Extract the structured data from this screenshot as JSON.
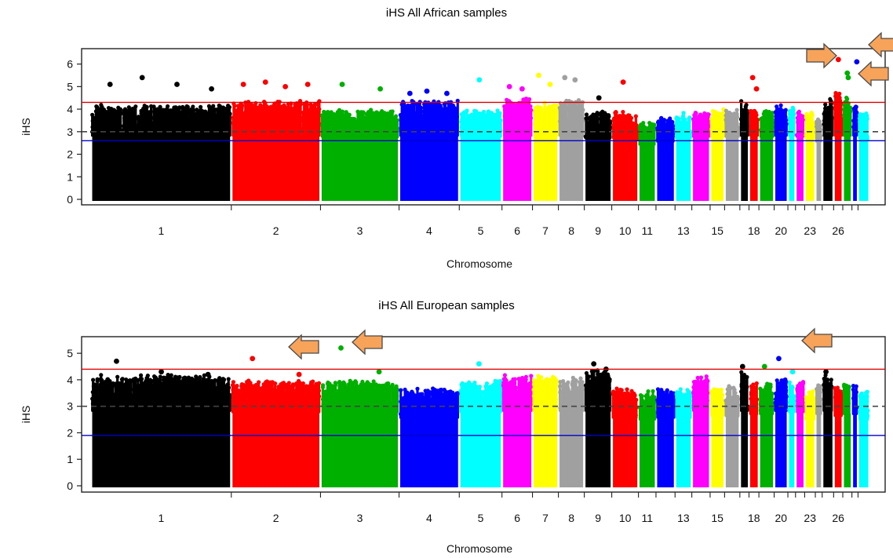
{
  "colors": {
    "palette": [
      "#000000",
      "#ff0000",
      "#00b000",
      "#0000ff",
      "#00ffff",
      "#ff00ff",
      "#ffff00",
      "#a0a0a0"
    ],
    "threshold_red": "#e00000",
    "threshold_blue": "#0000cc",
    "threshold_dash": "#444444",
    "arrow_fill": "#f7a35a",
    "arrow_stroke": "#4a4a4a"
  },
  "chart_data": [
    {
      "type": "scatter",
      "subtype": "manhattan",
      "title": "iHS All African samples",
      "xlabel": "Chromosome",
      "ylabel": "iHS",
      "ylim": [
        0,
        6.3
      ],
      "yticks": [
        0,
        1,
        2,
        3,
        4,
        5,
        6
      ],
      "x_tick_labels": [
        "1",
        "2",
        "3",
        "4",
        "5",
        "6",
        "7",
        "8",
        "9",
        "10",
        "11",
        "13",
        "15",
        "18",
        "20",
        "23",
        "26"
      ],
      "chromosomes": [
        "1",
        "2",
        "3",
        "4",
        "5",
        "6",
        "7",
        "8",
        "9",
        "10",
        "11",
        "12",
        "13",
        "14",
        "15",
        "16",
        "17",
        "18",
        "19",
        "20",
        "21",
        "22",
        "23",
        "24",
        "25",
        "26",
        "27",
        "28",
        "29"
      ],
      "bulk_max": [
        4.2,
        4.4,
        4.0,
        4.4,
        4.0,
        4.5,
        4.3,
        4.5,
        3.9,
        3.9,
        3.5,
        3.7,
        3.9,
        4.0,
        4.0,
        4.0,
        4.4,
        4.1,
        4.0,
        4.2,
        4.1,
        4.0,
        3.9,
        3.7,
        4.5,
        4.9,
        4.6,
        4.3,
        3.9
      ],
      "peaks": [
        {
          "chr": "1",
          "values": [
            5.1,
            5.4,
            5.1,
            4.9
          ]
        },
        {
          "chr": "2",
          "values": [
            5.1,
            5.2,
            5.0,
            5.1
          ]
        },
        {
          "chr": "3",
          "values": [
            5.1,
            4.9
          ]
        },
        {
          "chr": "4",
          "values": [
            4.7,
            4.8,
            4.7
          ]
        },
        {
          "chr": "5",
          "values": [
            5.3
          ]
        },
        {
          "chr": "6",
          "values": [
            5.0,
            4.9
          ]
        },
        {
          "chr": "7",
          "values": [
            5.5,
            5.1
          ]
        },
        {
          "chr": "8",
          "values": [
            5.4,
            5.3
          ]
        },
        {
          "chr": "9",
          "values": [
            4.5
          ]
        },
        {
          "chr": "10",
          "values": [
            5.2
          ]
        },
        {
          "chr": "18",
          "values": [
            5.4,
            4.9
          ]
        },
        {
          "chr": "26",
          "values": [
            6.2
          ]
        },
        {
          "chr": "27",
          "values": [
            5.6,
            5.4
          ]
        },
        {
          "chr": "28",
          "values": [
            6.1
          ]
        }
      ],
      "thresholds": {
        "red": 4.3,
        "dashed": 3.0,
        "blue": 2.6
      },
      "annotations": [
        "arrow",
        "arrow",
        "arrow"
      ]
    },
    {
      "type": "scatter",
      "subtype": "manhattan",
      "title": "iHS All European samples",
      "xlabel": "Chromosome",
      "ylabel": "iHS",
      "ylim": [
        0,
        5.3
      ],
      "yticks": [
        0,
        1,
        2,
        3,
        4,
        5
      ],
      "x_tick_labels": [
        "1",
        "2",
        "3",
        "4",
        "5",
        "6",
        "7",
        "8",
        "9",
        "10",
        "11",
        "13",
        "15",
        "18",
        "20",
        "23",
        "26"
      ],
      "chromosomes": [
        "1",
        "2",
        "3",
        "4",
        "5",
        "6",
        "7",
        "8",
        "9",
        "10",
        "11",
        "12",
        "13",
        "14",
        "15",
        "16",
        "17",
        "18",
        "19",
        "20",
        "21",
        "22",
        "23",
        "24",
        "25",
        "26",
        "27",
        "28",
        "29"
      ],
      "bulk_max": [
        4.2,
        4.0,
        4.0,
        3.7,
        4.0,
        4.2,
        4.2,
        4.1,
        4.4,
        3.7,
        3.6,
        3.7,
        3.7,
        4.2,
        3.8,
        3.8,
        4.3,
        3.9,
        3.9,
        4.1,
        4.0,
        4.0,
        3.6,
        3.9,
        4.2,
        3.8,
        3.9,
        3.9,
        3.6
      ],
      "peaks": [
        {
          "chr": "1",
          "values": [
            4.7,
            4.3,
            4.2
          ]
        },
        {
          "chr": "2",
          "values": [
            4.8,
            4.2
          ]
        },
        {
          "chr": "3",
          "values": [
            5.2,
            4.3
          ]
        },
        {
          "chr": "5",
          "values": [
            4.6
          ]
        },
        {
          "chr": "9",
          "values": [
            4.6,
            4.4
          ]
        },
        {
          "chr": "17",
          "values": [
            4.5
          ]
        },
        {
          "chr": "19",
          "values": [
            4.5
          ]
        },
        {
          "chr": "20",
          "values": [
            4.8
          ]
        },
        {
          "chr": "21",
          "values": [
            4.3
          ]
        },
        {
          "chr": "25",
          "values": [
            4.3
          ]
        }
      ],
      "thresholds": {
        "red": 4.4,
        "dashed": 3.0,
        "blue": 1.9
      },
      "annotations": [
        "arrow",
        "arrow",
        "arrow"
      ]
    }
  ]
}
